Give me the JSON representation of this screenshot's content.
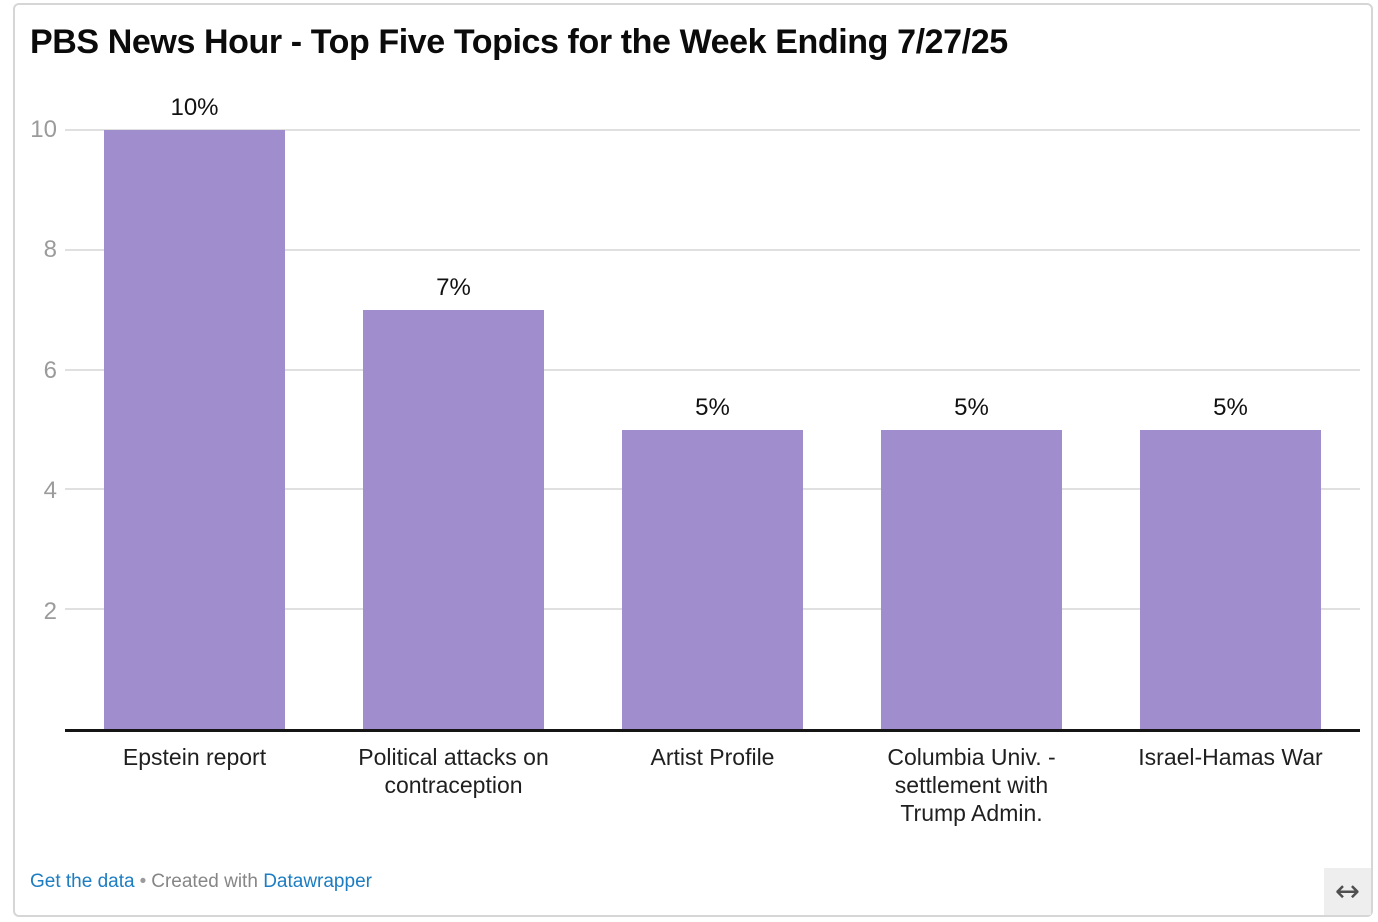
{
  "header": {
    "title": "PBS News Hour - Top Five Topics for the Week Ending 7/27/25"
  },
  "chart_data": {
    "type": "bar",
    "title": "PBS News Hour - Top Five Topics for the Week Ending 7/27/25",
    "categories": [
      "Epstein report",
      "Political attacks on\ncontraception",
      "Artist Profile",
      "Columbia Univ. -\nsettlement with\nTrump Admin.",
      "Israel-Hamas War"
    ],
    "values": [
      10,
      7,
      5,
      5,
      5
    ],
    "value_labels": [
      "10%",
      "7%",
      "5%",
      "5%",
      "5%"
    ],
    "xlabel": "",
    "ylabel": "",
    "yticks": [
      2,
      4,
      6,
      8,
      10
    ],
    "ylim": [
      0,
      10
    ],
    "grid": true,
    "legend": "none",
    "bar_color": "#9f8dcd"
  },
  "footer": {
    "get_data_label": "Get the data",
    "separator": "•",
    "created_with": "Created with",
    "datawrapper_label": "Datawrapper"
  },
  "icons": {
    "resize_handle": "↔"
  },
  "colors": {
    "bar_purple": "#9f8dcd",
    "link_blue": "#1d7dc2",
    "axis_label_gray": "#9b9b9b",
    "gridline_gray": "#e0e0e0",
    "baseline_black": "#151515",
    "footer_gray": "#868686",
    "border_gray": "#d6d6d6"
  }
}
